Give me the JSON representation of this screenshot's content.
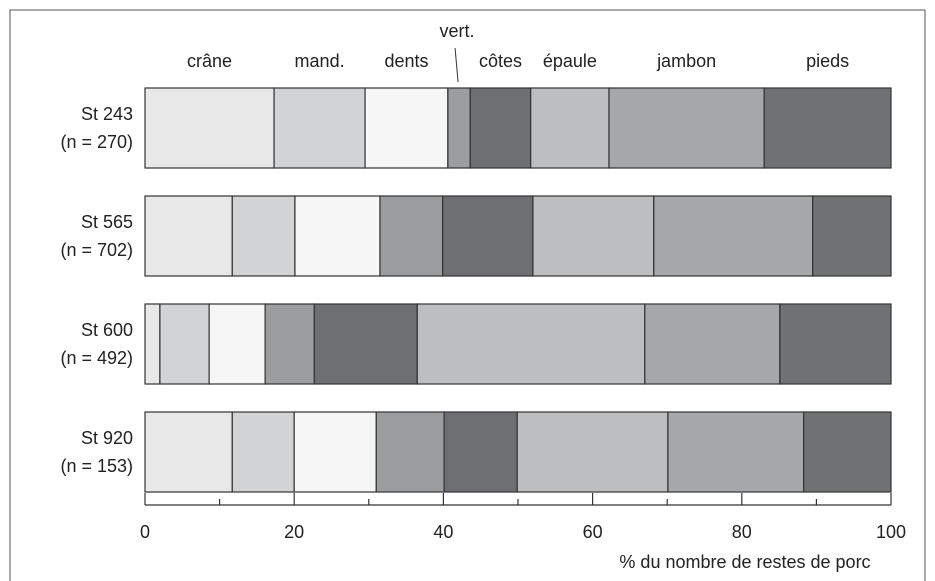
{
  "chart_data": {
    "type": "stacked_barh",
    "categories": [
      "St 243",
      "St 565",
      "St 600",
      "St 920"
    ],
    "sample_sizes": [
      "(n = 270)",
      "(n = 702)",
      "(n = 492)",
      "(n = 153)"
    ],
    "series": [
      {
        "name": "crâne",
        "color": "#e8e8e9",
        "values": [
          17.3,
          11.7,
          2.0,
          11.7
        ]
      },
      {
        "name": "mand.",
        "color": "#d2d3d4",
        "values": [
          12.2,
          8.4,
          6.6,
          8.3
        ]
      },
      {
        "name": "dents",
        "color": "#f6f6f6",
        "values": [
          11.1,
          11.4,
          7.5,
          11.0
        ]
      },
      {
        "name": "vert.",
        "color": "#9c9d9f",
        "values": [
          3.0,
          8.4,
          6.6,
          9.1
        ]
      },
      {
        "name": "côtes",
        "color": "#6e6f71",
        "values": [
          8.1,
          12.1,
          13.8,
          9.8
        ]
      },
      {
        "name": "épaule",
        "color": "#bdbec0",
        "values": [
          10.5,
          16.2,
          30.5,
          20.2
        ]
      },
      {
        "name": "jambon",
        "color": "#a6a7a9",
        "values": [
          20.8,
          21.3,
          18.1,
          18.2
        ]
      },
      {
        "name": "pieds",
        "color": "#707173",
        "values": [
          17.0,
          10.5,
          14.9,
          11.7
        ]
      }
    ],
    "xlabel": "% du nombre de restes de porc",
    "xlim": [
      0,
      100
    ],
    "xticks": [
      0,
      20,
      40,
      60,
      80,
      100
    ],
    "xminorticks": [
      10,
      30,
      50,
      70,
      90
    ]
  }
}
